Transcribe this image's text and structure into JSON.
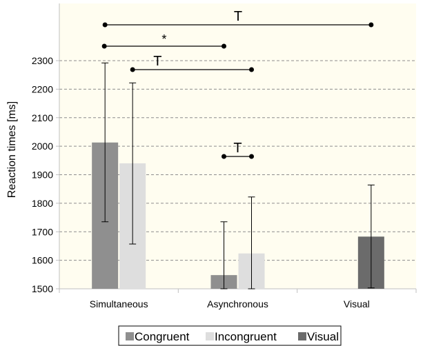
{
  "chart_data": {
    "type": "bar",
    "ylabel": "Reaction times [ms]",
    "xlabel": "",
    "ylim": [
      1500,
      2300
    ],
    "yticks": [
      1500,
      1600,
      1700,
      1800,
      1900,
      2000,
      2100,
      2200,
      2300
    ],
    "grid": true,
    "legend_position": "bottom",
    "categories": [
      "Simultaneous",
      "Asynchronous",
      "Visual"
    ],
    "series": [
      {
        "name": "Congruent",
        "color": "#8f8f8f",
        "values": [
          2013,
          1548,
          null
        ],
        "error_low": [
          1735,
          1500,
          null
        ],
        "error_high": [
          2292,
          1735,
          null
        ]
      },
      {
        "name": "Incongruent",
        "color": "#dedede",
        "values": [
          1940,
          1624,
          null
        ],
        "error_low": [
          1657,
          1500,
          null
        ],
        "error_high": [
          2222,
          1822,
          null
        ]
      },
      {
        "name": "Visual",
        "color": "#6b6b6b",
        "values": [
          null,
          null,
          1683
        ],
        "error_low": [
          null,
          null,
          1503
        ],
        "error_high": [
          null,
          null,
          1864
        ]
      }
    ],
    "significance": [
      {
        "label": "T",
        "from": {
          "category": 0,
          "series": 0
        },
        "to": {
          "category": 2,
          "series": 2
        }
      },
      {
        "label": "*",
        "from": {
          "category": 0,
          "series": 0
        },
        "to": {
          "category": 1,
          "series": 0
        }
      },
      {
        "label": "T",
        "from": {
          "category": 0,
          "series": 1
        },
        "to": {
          "category": 1,
          "series": 1
        }
      },
      {
        "label": "T",
        "from": {
          "category": 1,
          "series": 0
        },
        "to": {
          "category": 1,
          "series": 1
        }
      }
    ],
    "colors": {
      "plot_background": "#fffdf0",
      "grid": "#8c8c8c",
      "axis": "#bfbfbf"
    }
  }
}
